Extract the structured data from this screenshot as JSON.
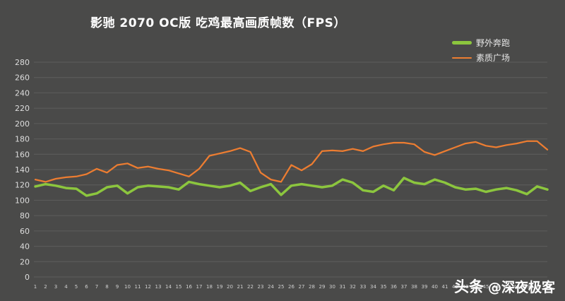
{
  "title": "影驰 2070 OC版 吃鸡最高画质帧数（FPS）",
  "watermark": {
    "brand": "头条",
    "handle": "@深夜极客"
  },
  "colors": {
    "background": "#4a4a49",
    "grid": "#5e5e5d",
    "tick_text": "#dddddd",
    "title_text": "#ffffff",
    "green_series": "#8cc63e",
    "orange_series": "#ed7d31"
  },
  "chart_data": {
    "type": "line",
    "title": "影驰 2070 OC版 吃鸡最高画质帧数（FPS）",
    "xlabel": "",
    "ylabel": "",
    "ylim": [
      0,
      280
    ],
    "ytick_step": 20,
    "grid": true,
    "legend_position": "top-right",
    "x": [
      1,
      2,
      3,
      4,
      5,
      6,
      7,
      8,
      9,
      10,
      11,
      12,
      13,
      14,
      15,
      16,
      17,
      18,
      19,
      20,
      21,
      22,
      23,
      24,
      25,
      26,
      27,
      28,
      29,
      30,
      31,
      32,
      33,
      34,
      35,
      36,
      37,
      38,
      39,
      40,
      41,
      42,
      43,
      44,
      45,
      46,
      47,
      48,
      49,
      50,
      51
    ],
    "series": [
      {
        "name": "野外奔跑",
        "color": "#8cc63e",
        "stroke_width": 3.5,
        "values": [
          118,
          121,
          119,
          116,
          115,
          106,
          109,
          117,
          119,
          109,
          117,
          119,
          118,
          117,
          114,
          124,
          121,
          119,
          117,
          119,
          123,
          112,
          117,
          121,
          107,
          119,
          121,
          119,
          117,
          119,
          127,
          123,
          113,
          111,
          119,
          113,
          129,
          123,
          121,
          127,
          123,
          117,
          114,
          115,
          111,
          114,
          116,
          113,
          108,
          118,
          114
        ]
      },
      {
        "name": "素质广场",
        "color": "#ed7d31",
        "stroke_width": 2.25,
        "values": [
          127,
          124,
          128,
          130,
          131,
          134,
          141,
          136,
          146,
          148,
          142,
          144,
          141,
          139,
          135,
          131,
          141,
          158,
          161,
          164,
          168,
          163,
          136,
          127,
          124,
          146,
          139,
          147,
          164,
          165,
          164,
          167,
          164,
          170,
          173,
          175,
          175,
          173,
          163,
          159,
          164,
          169,
          174,
          176,
          171,
          169,
          172,
          174,
          177,
          177,
          166
        ]
      }
    ]
  }
}
